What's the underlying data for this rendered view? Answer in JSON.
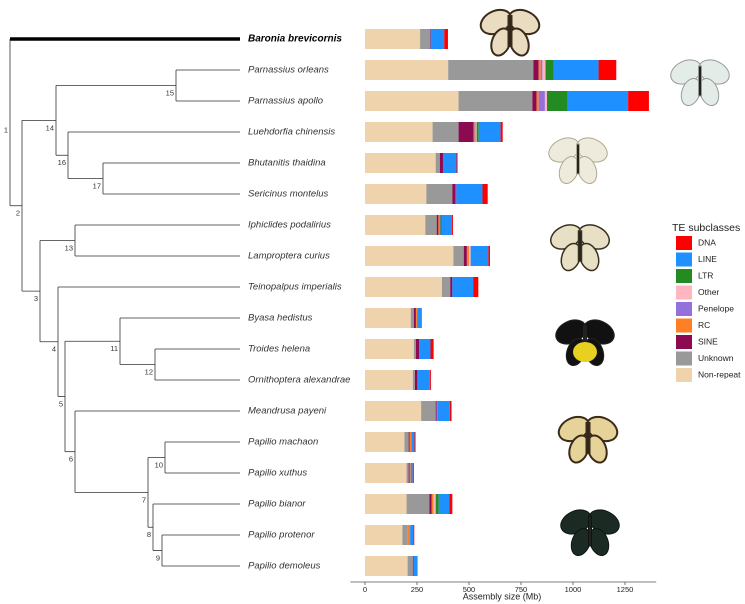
{
  "chart_data": {
    "type": "bar",
    "orientation": "horizontal",
    "stacked": true,
    "categories": [
      "Baronia brevicornis",
      "Parnassius orleans",
      "Parnassius apollo",
      "Luehdorfia chinensis",
      "Bhutanitis thaidina",
      "Sericinus montelus",
      "Iphiclides podalirius",
      "Lamproptera curius",
      "Teinopalpus imperialis",
      "Byasa hedistus",
      "Troides helena",
      "Ornithoptera alexandrae",
      "Meandrusa payeni",
      "Papilio machaon",
      "Papilio xuthus",
      "Papilio bianor",
      "Papilio protenor",
      "Papilio demoleus"
    ],
    "tree_node_labels": [
      "1",
      "2",
      "3",
      "4",
      "5",
      "6",
      "7",
      "8",
      "9",
      "10",
      "11",
      "12",
      "13",
      "14",
      "15",
      "16",
      "17"
    ],
    "series": [
      {
        "name": "Non-repeat",
        "color": "#efd3ac",
        "values": [
          265,
          400,
          450,
          325,
          340,
          295,
          290,
          425,
          370,
          220,
          235,
          230,
          270,
          190,
          200,
          200,
          180,
          205
        ]
      },
      {
        "name": "Unknown",
        "color": "#999999",
        "values": [
          48,
          410,
          355,
          125,
          20,
          125,
          55,
          50,
          40,
          15,
          10,
          10,
          70,
          20,
          10,
          110,
          25,
          25
        ]
      },
      {
        "name": "SINE",
        "color": "#8b0a50",
        "values": [
          3,
          25,
          20,
          72,
          15,
          15,
          8,
          15,
          10,
          10,
          15,
          12,
          5,
          5,
          5,
          10,
          0,
          3
        ]
      },
      {
        "name": "RC",
        "color": "#ff7f24",
        "values": [
          0,
          10,
          10,
          5,
          0,
          0,
          5,
          10,
          0,
          5,
          0,
          0,
          0,
          8,
          5,
          10,
          12,
          0
        ]
      },
      {
        "name": "Penelope",
        "color": "#9370db",
        "values": [
          0,
          8,
          30,
          5,
          0,
          5,
          5,
          0,
          0,
          5,
          0,
          0,
          3,
          0,
          0,
          0,
          0,
          0
        ]
      },
      {
        "name": "Other",
        "color": "#ffb6c1",
        "values": [
          0,
          15,
          10,
          5,
          0,
          0,
          0,
          8,
          0,
          0,
          0,
          0,
          0,
          0,
          0,
          10,
          0,
          0
        ]
      },
      {
        "name": "LTR",
        "color": "#228b22",
        "values": [
          0,
          40,
          100,
          10,
          0,
          0,
          5,
          0,
          0,
          0,
          0,
          0,
          0,
          0,
          0,
          15,
          0,
          0
        ]
      },
      {
        "name": "LINE",
        "color": "#1e90ff",
        "values": [
          65,
          215,
          290,
          105,
          65,
          125,
          50,
          85,
          100,
          15,
          55,
          60,
          60,
          15,
          10,
          50,
          15,
          20
        ]
      },
      {
        "name": "DNA",
        "color": "#ff0000",
        "values": [
          18,
          85,
          100,
          10,
          5,
          25,
          5,
          8,
          25,
          3,
          15,
          5,
          8,
          5,
          5,
          15,
          5,
          0
        ]
      }
    ],
    "xlabel": "Assembly size (Mb)",
    "xlim": [
      -70,
      1400
    ],
    "xticks": [
      0,
      250,
      500,
      750,
      1000,
      1250
    ],
    "legend_title": "TE subclasses",
    "legend": "right"
  }
}
